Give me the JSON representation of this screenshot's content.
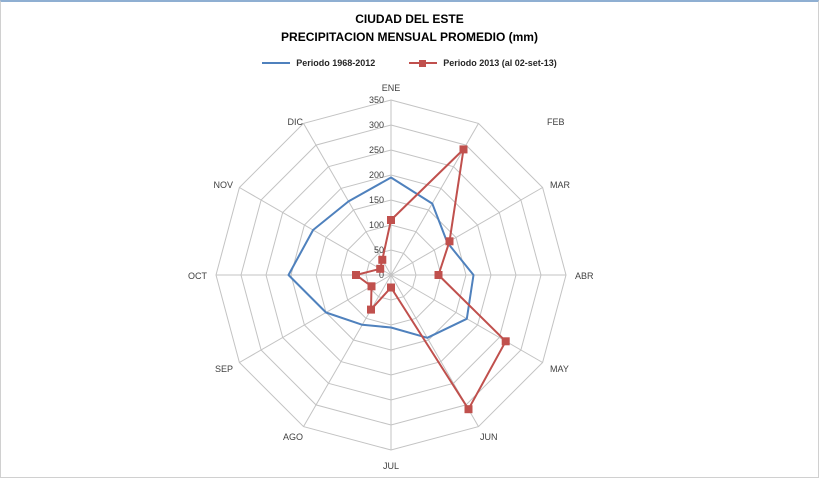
{
  "title": {
    "line1": "CIUDAD DEL ESTE",
    "line2": "PRECIPITACION MENSUAL PROMEDIO (mm)"
  },
  "legend": {
    "items": [
      {
        "label": "Periodo 1968-2012",
        "color": "#4F81BD",
        "marker": "line"
      },
      {
        "label": "Periodo 2013 (al 02-set-13)",
        "color": "#C0504D",
        "marker": "line-with-square"
      }
    ]
  },
  "chart_data": {
    "type": "radar",
    "title": "CIUDAD DEL ESTE - PRECIPITACION MENSUAL PROMEDIO (mm)",
    "categories": [
      "ENE",
      "FEB",
      "MAR",
      "ABR",
      "MAY",
      "JUN",
      "JUL",
      "AGO",
      "SEP",
      "OCT",
      "NOV",
      "DIC"
    ],
    "series": [
      {
        "name": "Periodo 1968-2012",
        "color": "#4F81BD",
        "marker": "none",
        "values": [
          195,
          165,
          130,
          165,
          175,
          145,
          105,
          115,
          150,
          205,
          180,
          170
        ]
      },
      {
        "name": "Periodo 2013 (al 02-set-13)",
        "color": "#C0504D",
        "marker": "square",
        "values": [
          110,
          290,
          135,
          95,
          265,
          310,
          25,
          80,
          45,
          70,
          25,
          35
        ]
      }
    ],
    "r_axis": {
      "min": 0,
      "max": 350,
      "step": 50,
      "tick_labels": [
        "0",
        "50",
        "100",
        "150",
        "200",
        "250",
        "300",
        "350"
      ]
    },
    "grid_on": true,
    "grid_color": "#c3c3c3",
    "label_color": "#404040",
    "legend_position": "top"
  }
}
